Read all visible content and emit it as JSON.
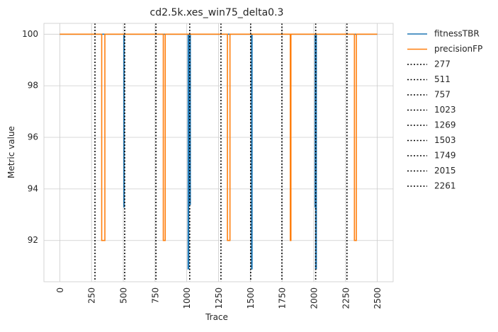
{
  "chart_data": {
    "type": "line",
    "title": "cd2.5k.xes_win75_delta0.3",
    "xlabel": "Trace",
    "ylabel": "Metric value",
    "xlim": [
      -125,
      2625
    ],
    "ylim": [
      90.4,
      100.42
    ],
    "xticks": [
      0,
      250,
      500,
      750,
      1000,
      1250,
      1500,
      1750,
      2000,
      2250,
      2500
    ],
    "xtick_labels": [
      "0",
      "250",
      "500",
      "750",
      "1000",
      "1250",
      "1500",
      "1750",
      "2000",
      "2250",
      "2500"
    ],
    "yticks": [
      92,
      94,
      96,
      98,
      100
    ],
    "ytick_labels": [
      "92",
      "94",
      "96",
      "98",
      "100"
    ],
    "grid": true,
    "legend_position": "outside-right",
    "series": [
      {
        "name": "fitnessTBR",
        "color": "#1f77b4",
        "points": [
          [
            0,
            100
          ],
          [
            505,
            100
          ],
          [
            505,
            93.3
          ],
          [
            507,
            93.3
          ],
          [
            507,
            100
          ],
          [
            1010,
            100
          ],
          [
            1010,
            90.9
          ],
          [
            1015,
            90.9
          ],
          [
            1015,
            100
          ],
          [
            1025,
            100
          ],
          [
            1025,
            93.4
          ],
          [
            1028,
            93.4
          ],
          [
            1028,
            100
          ],
          [
            1510,
            100
          ],
          [
            1510,
            90.9
          ],
          [
            1514,
            90.9
          ],
          [
            1514,
            100
          ],
          [
            2010,
            100
          ],
          [
            2010,
            93.3
          ],
          [
            2015,
            93.3
          ],
          [
            2015,
            90.9
          ],
          [
            2020,
            90.9
          ],
          [
            2020,
            100
          ],
          [
            2500,
            100
          ]
        ]
      },
      {
        "name": "precisionFP",
        "color": "#ff7f0e",
        "points": [
          [
            0,
            100
          ],
          [
            330,
            100
          ],
          [
            330,
            92
          ],
          [
            355,
            92
          ],
          [
            355,
            100
          ],
          [
            815,
            100
          ],
          [
            815,
            92
          ],
          [
            830,
            92
          ],
          [
            830,
            100
          ],
          [
            1320,
            100
          ],
          [
            1320,
            92
          ],
          [
            1340,
            92
          ],
          [
            1340,
            100
          ],
          [
            1815,
            100
          ],
          [
            1815,
            92
          ],
          [
            1820,
            92
          ],
          [
            1820,
            100
          ],
          [
            2320,
            100
          ],
          [
            2320,
            92
          ],
          [
            2335,
            92
          ],
          [
            2335,
            100
          ],
          [
            2500,
            100
          ]
        ]
      }
    ],
    "vlines": [
      {
        "x": 277,
        "label": "277"
      },
      {
        "x": 511,
        "label": "511"
      },
      {
        "x": 757,
        "label": "757"
      },
      {
        "x": 1023,
        "label": "1023"
      },
      {
        "x": 1269,
        "label": "1269"
      },
      {
        "x": 1503,
        "label": "1503"
      },
      {
        "x": 1749,
        "label": "1749"
      },
      {
        "x": 2015,
        "label": "2015"
      },
      {
        "x": 2261,
        "label": "2261"
      }
    ],
    "vline_color": "#000000"
  }
}
